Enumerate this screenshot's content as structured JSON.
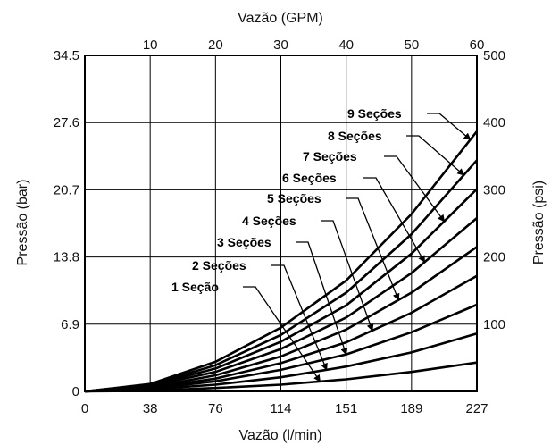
{
  "chart_data": {
    "type": "line",
    "top_axis_title": "Vazão (GPM)",
    "bottom_axis_title": "Vazão (l/min)",
    "left_axis_title": "Pressão (bar)",
    "right_axis_title": "Pressão (psi)",
    "x_range_gpm": [
      0,
      60
    ],
    "y_range_psi": [
      0,
      500
    ],
    "top_ticks": [
      "10",
      "20",
      "30",
      "40",
      "50",
      "60"
    ],
    "bottom_ticks": [
      "0",
      "38",
      "76",
      "114",
      "151",
      "189",
      "227"
    ],
    "left_ticks": [
      "0",
      "6.9",
      "13.8",
      "20.7",
      "27.6",
      "34.5"
    ],
    "right_ticks": [
      "100",
      "200",
      "300",
      "400",
      "500"
    ],
    "grid": "vertical at 10 GPM steps, horizontal at 100 psi steps",
    "series": [
      {
        "name": "1 Seção",
        "x_gpm": [
          0,
          10,
          20,
          30,
          40,
          50,
          60
        ],
        "y_psi": [
          0,
          1,
          5,
          10,
          18,
          29,
          43
        ]
      },
      {
        "name": "2 Seções",
        "x_gpm": [
          0,
          10,
          20,
          30,
          40,
          50,
          60
        ],
        "y_psi": [
          0,
          3,
          10,
          21,
          37,
          58,
          86
        ]
      },
      {
        "name": "3 Seções",
        "x_gpm": [
          0,
          10,
          20,
          30,
          40,
          50,
          60
        ],
        "y_psi": [
          0,
          4,
          15,
          32,
          55,
          88,
          129
        ]
      },
      {
        "name": "4 Seções",
        "x_gpm": [
          0,
          10,
          20,
          30,
          40,
          50,
          60
        ],
        "y_psi": [
          0,
          5,
          19,
          42,
          73,
          117,
          172
        ]
      },
      {
        "name": "5 Seções",
        "x_gpm": [
          0,
          10,
          20,
          30,
          40,
          50,
          60
        ],
        "y_psi": [
          0,
          6,
          24,
          52,
          92,
          147,
          215
        ]
      },
      {
        "name": "6 Seções",
        "x_gpm": [
          0,
          10,
          20,
          30,
          40,
          50,
          60
        ],
        "y_psi": [
          0,
          8,
          29,
          63,
          110,
          176,
          258
        ]
      },
      {
        "name": "7 Seções",
        "x_gpm": [
          0,
          10,
          20,
          30,
          40,
          50,
          60
        ],
        "y_psi": [
          0,
          9,
          34,
          74,
          128,
          205,
          301
        ]
      },
      {
        "name": "8 Seções",
        "x_gpm": [
          0,
          10,
          20,
          30,
          40,
          50,
          60
        ],
        "y_psi": [
          0,
          10,
          39,
          84,
          147,
          234,
          344
        ]
      },
      {
        "name": "9 Seções",
        "x_gpm": [
          0,
          10,
          20,
          30,
          40,
          50,
          60
        ],
        "y_psi": [
          0,
          11,
          44,
          95,
          165,
          264,
          387
        ]
      }
    ],
    "series_label_anchor_gpm": [
      36,
      37,
      40,
      44,
      48,
      52,
      55,
      58,
      59
    ]
  }
}
